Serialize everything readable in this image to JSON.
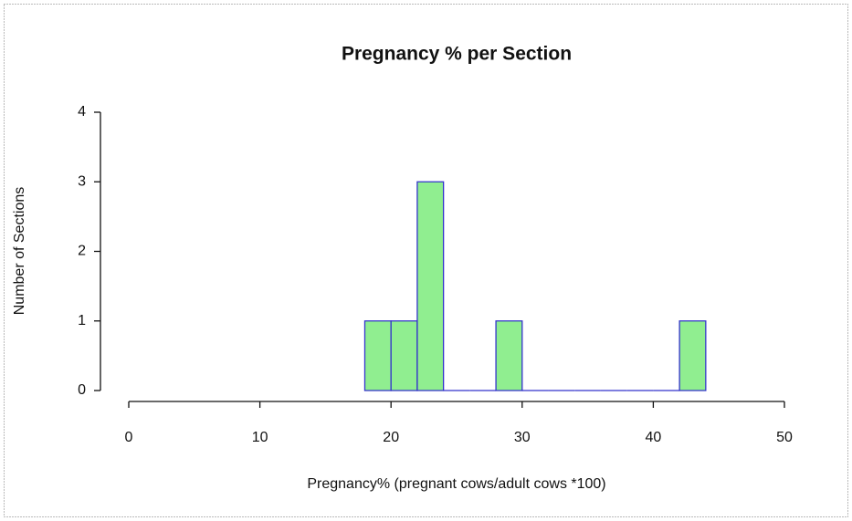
{
  "chart_data": {
    "type": "histogram",
    "title": "Pregnancy % per Section",
    "x_label": "Pregnancy% (pregnant cows/adult cows *100)",
    "y_label": "Number of Sections",
    "bins": [
      18,
      20,
      22,
      24,
      26,
      28,
      30,
      32,
      34,
      36,
      38,
      40,
      42,
      44
    ],
    "counts": [
      1,
      1,
      3,
      0,
      0,
      1,
      0,
      0,
      0,
      0,
      0,
      0,
      1
    ],
    "color": "#90ee90",
    "edge_color": "#3333cc",
    "xlim": [
      0,
      50
    ],
    "xticks": [
      0,
      10,
      20,
      30,
      40,
      50
    ],
    "ylim": [
      0,
      4
    ],
    "yticks": [
      0,
      1,
      2,
      3,
      4
    ]
  }
}
